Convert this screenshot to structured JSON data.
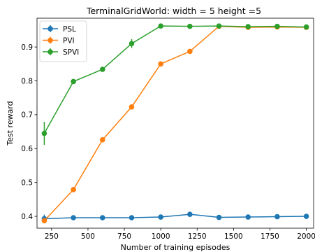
{
  "chart_data": {
    "type": "line",
    "title": "TerminalGridWorld: width = 5 height =5",
    "xlabel": "Number of training episodes",
    "ylabel": "Test reward",
    "xlim": [
      150,
      2050
    ],
    "ylim": [
      0.365,
      0.985
    ],
    "xticks": [
      250,
      500,
      750,
      1000,
      1250,
      1500,
      1750,
      2000
    ],
    "xtick_labels": [
      "250",
      "500",
      "750",
      "1000",
      "1250",
      "1500",
      "1750",
      "2000"
    ],
    "yticks": [
      0.4,
      0.5,
      0.6,
      0.7,
      0.8,
      0.9
    ],
    "ytick_labels": [
      "0.4",
      "0.5",
      "0.6",
      "0.7",
      "0.8",
      "0.9"
    ],
    "grid": false,
    "legend_position": "upper-left",
    "x": [
      200,
      400,
      600,
      800,
      1000,
      1200,
      1400,
      1600,
      1800,
      2000
    ],
    "series": [
      {
        "name": "PSL",
        "color": "#1f77b4",
        "values": [
          0.393,
          0.396,
          0.396,
          0.396,
          0.398,
          0.406,
          0.397,
          0.398,
          0.399,
          0.4
        ],
        "errors": [
          0.012,
          0.004,
          0.003,
          0.003,
          0.003,
          0.004,
          0.003,
          0.003,
          0.003,
          0.003
        ]
      },
      {
        "name": "PVI",
        "color": "#ff7f0e",
        "values": [
          0.387,
          0.479,
          0.626,
          0.723,
          0.85,
          0.887,
          0.961,
          0.958,
          0.959,
          0.958
        ],
        "errors": [
          0.005,
          0.008,
          0.004,
          0.006,
          0.003,
          0.003,
          0.003,
          0.003,
          0.004,
          0.004
        ]
      },
      {
        "name": "SPVI",
        "color": "#2ca02c",
        "values": [
          0.645,
          0.798,
          0.834,
          0.91,
          0.962,
          0.961,
          0.962,
          0.96,
          0.961,
          0.959
        ],
        "errors": [
          0.034,
          0.004,
          0.004,
          0.013,
          0.003,
          0.003,
          0.003,
          0.003,
          0.003,
          0.003
        ]
      }
    ]
  }
}
